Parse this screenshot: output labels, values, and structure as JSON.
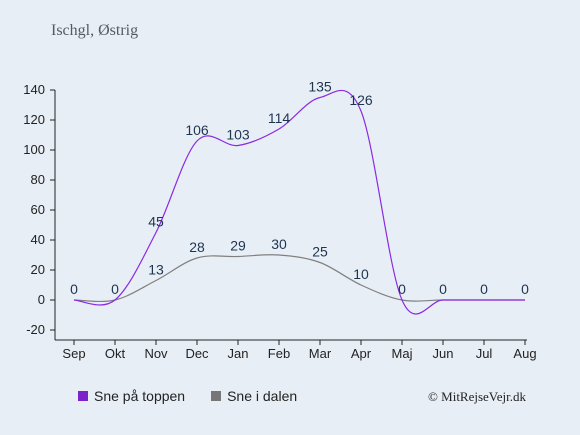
{
  "location": "Ischgl, Østrig",
  "credit": "© MitRejseVejr.dk",
  "chart_data": {
    "type": "line",
    "categories": [
      "Sep",
      "Okt",
      "Nov",
      "Dec",
      "Jan",
      "Feb",
      "Mar",
      "Apr",
      "Maj",
      "Jun",
      "Jul",
      "Aug"
    ],
    "ylim": [
      -20,
      140
    ],
    "yticks": [
      -20,
      0,
      20,
      40,
      60,
      80,
      100,
      120,
      140
    ],
    "series": [
      {
        "name": "Sne på toppen",
        "color": "#8a2be2",
        "values": [
          0,
          0,
          45,
          106,
          103,
          114,
          135,
          126,
          0,
          0,
          0,
          0
        ]
      },
      {
        "name": "Sne i dalen",
        "color": "#808080",
        "values": [
          0,
          0,
          13,
          28,
          29,
          30,
          25,
          10,
          0,
          0,
          0,
          0
        ]
      }
    ],
    "legend_position": "bottom-left"
  }
}
